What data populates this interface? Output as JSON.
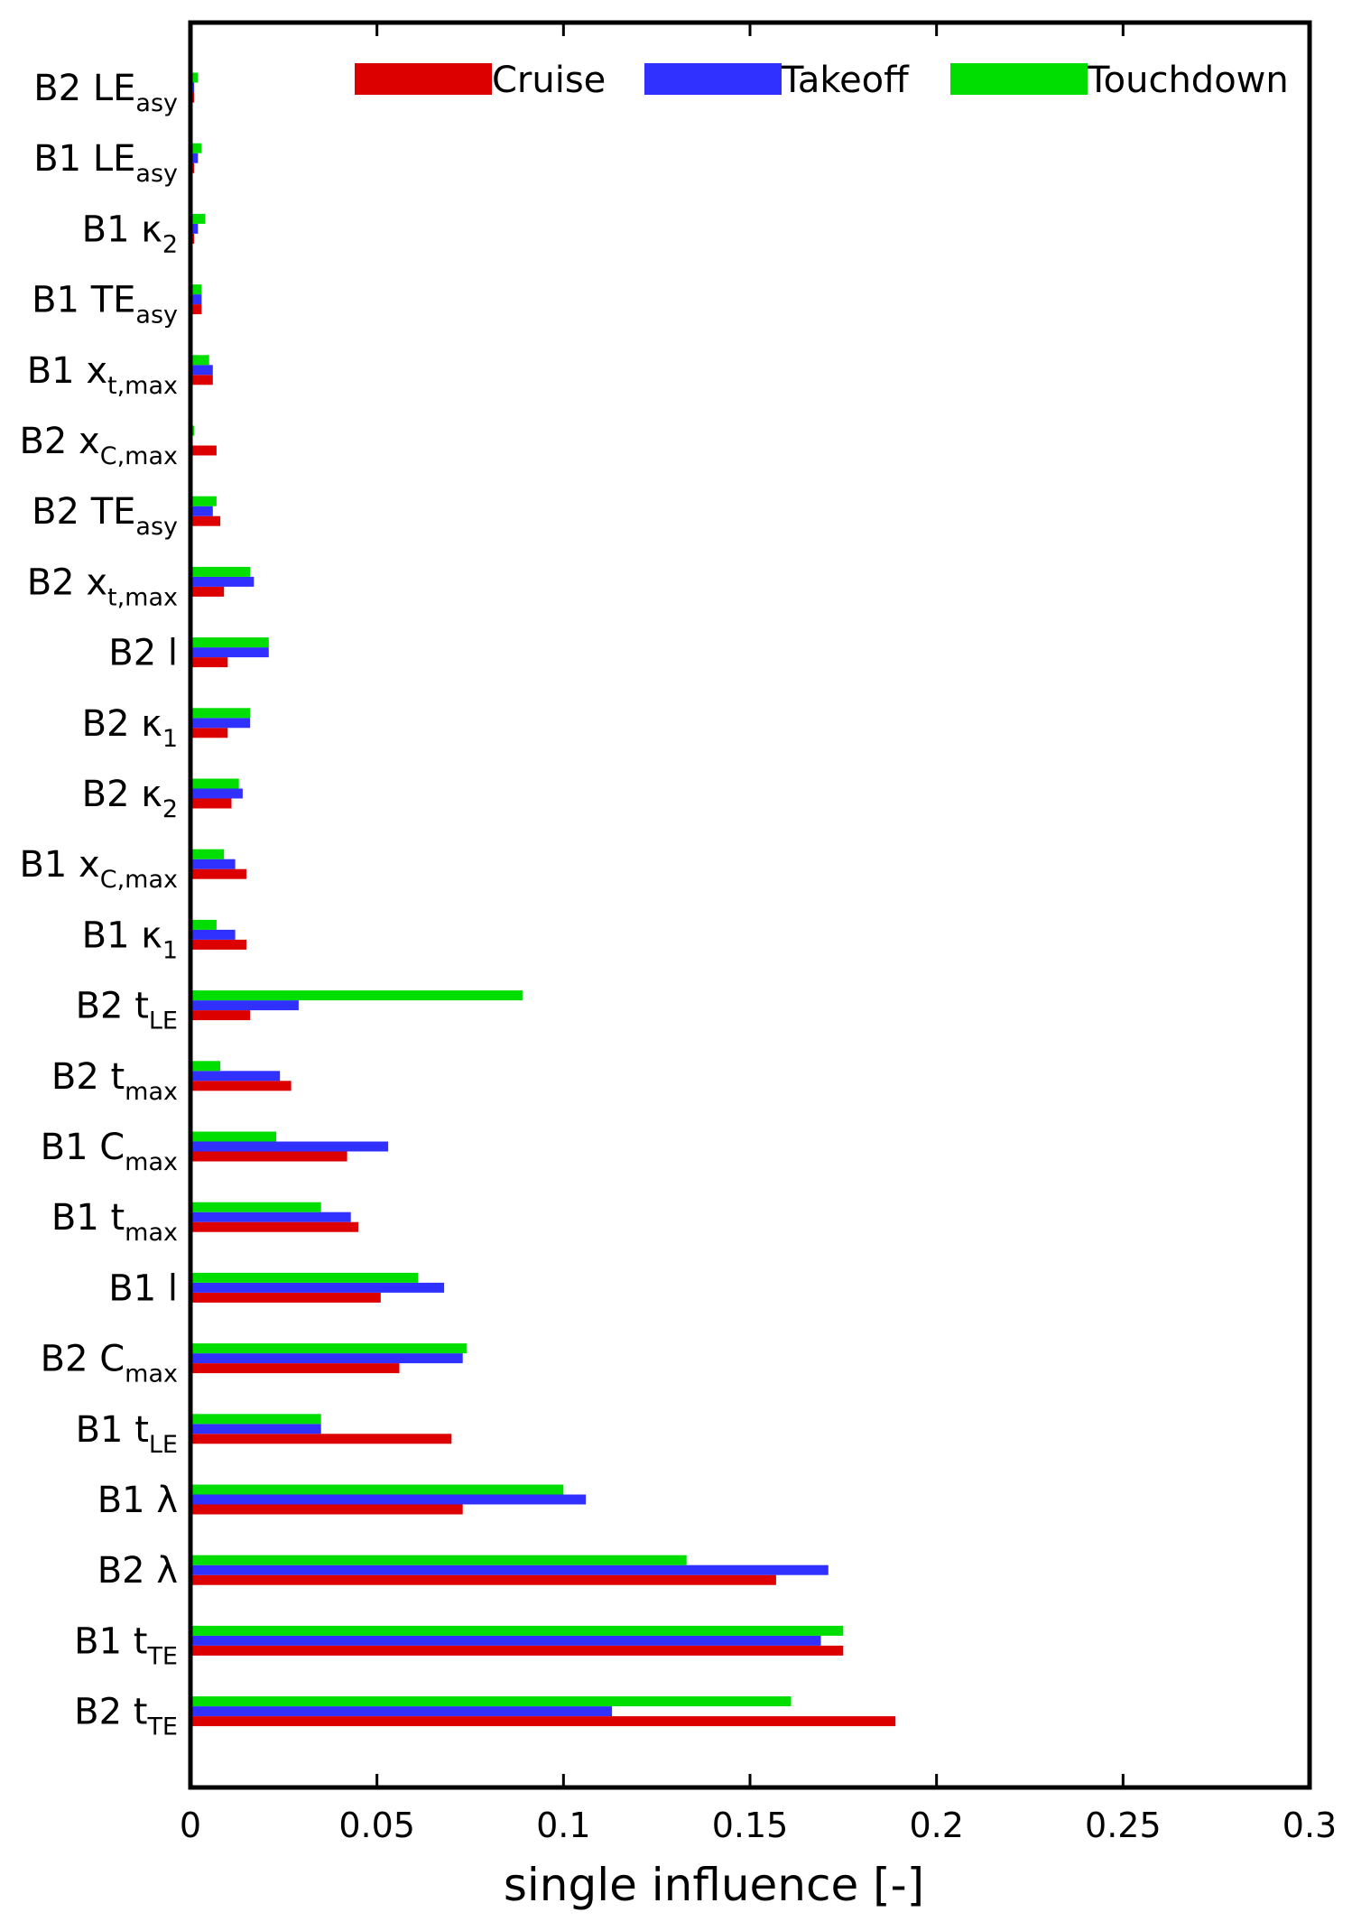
{
  "chart_data": {
    "type": "bar",
    "orientation": "horizontal",
    "xlabel": "single influence [-]",
    "ylabel": "",
    "xlim": [
      0,
      0.3
    ],
    "xticks": [
      "0",
      "0.05",
      "0.1",
      "0.15",
      "0.2",
      "0.25",
      "0.3"
    ],
    "grid": false,
    "legend_position": "top-right",
    "categories": [
      {
        "main": "B2 LE",
        "sub": "asy"
      },
      {
        "main": "B1 LE",
        "sub": "asy"
      },
      {
        "main": "B1 κ",
        "sub": "2"
      },
      {
        "main": "B1 TE",
        "sub": "asy"
      },
      {
        "main": "B1 x",
        "sub": "t,max"
      },
      {
        "main": "B2 x",
        "sub": "C,max"
      },
      {
        "main": "B2 TE",
        "sub": "asy"
      },
      {
        "main": "B2 x",
        "sub": "t,max"
      },
      {
        "main": "B2 l",
        "sub": ""
      },
      {
        "main": "B2 κ",
        "sub": "1"
      },
      {
        "main": "B2 κ",
        "sub": "2"
      },
      {
        "main": "B1 x",
        "sub": "C,max"
      },
      {
        "main": "B1 κ",
        "sub": "1"
      },
      {
        "main": "B2 t",
        "sub": "LE"
      },
      {
        "main": "B2 t",
        "sub": "max"
      },
      {
        "main": "B1 C",
        "sub": "max"
      },
      {
        "main": "B1 t",
        "sub": "max"
      },
      {
        "main": "B1 l",
        "sub": ""
      },
      {
        "main": "B2 C",
        "sub": "max"
      },
      {
        "main": "B1 t",
        "sub": "LE"
      },
      {
        "main": "B1 λ",
        "sub": ""
      },
      {
        "main": "B2 λ",
        "sub": ""
      },
      {
        "main": "B1 t",
        "sub": "TE"
      },
      {
        "main": "B2 t",
        "sub": "TE"
      }
    ],
    "series": [
      {
        "name": "Cruise",
        "color": "#dd0000",
        "values": [
          0.001,
          0.001,
          0.001,
          0.003,
          0.006,
          0.007,
          0.008,
          0.009,
          0.01,
          0.01,
          0.011,
          0.015,
          0.015,
          0.016,
          0.027,
          0.042,
          0.045,
          0.051,
          0.056,
          0.07,
          0.073,
          0.157,
          0.175,
          0.189
        ]
      },
      {
        "name": "Takeoff",
        "color": "#3030ff",
        "values": [
          0.001,
          0.002,
          0.002,
          0.003,
          0.006,
          0.0,
          0.006,
          0.017,
          0.021,
          0.016,
          0.014,
          0.012,
          0.012,
          0.029,
          0.024,
          0.053,
          0.043,
          0.068,
          0.073,
          0.035,
          0.106,
          0.171,
          0.169,
          0.113
        ]
      },
      {
        "name": "Touchdown",
        "color": "#00dd00",
        "values": [
          0.002,
          0.003,
          0.004,
          0.003,
          0.005,
          0.001,
          0.007,
          0.016,
          0.021,
          0.016,
          0.013,
          0.009,
          0.007,
          0.089,
          0.008,
          0.023,
          0.035,
          0.061,
          0.074,
          0.035,
          0.1,
          0.133,
          0.175,
          0.161
        ]
      }
    ]
  }
}
